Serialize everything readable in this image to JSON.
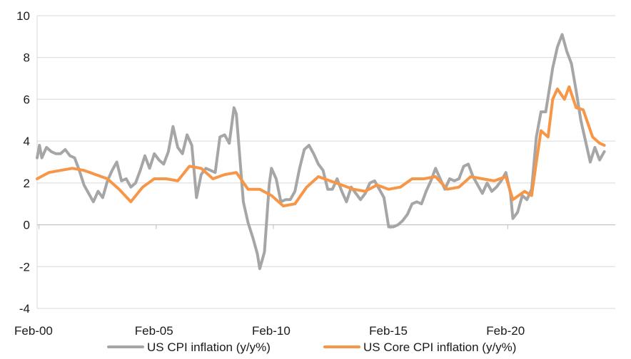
{
  "chart_data": {
    "type": "line",
    "title": "",
    "xlabel": "",
    "ylabel": "",
    "ylim": [
      -4,
      10
    ],
    "yticks": [
      -4,
      -2,
      0,
      2,
      4,
      6,
      8,
      10
    ],
    "xlim": [
      2000.0,
      2024.67
    ],
    "xticks": [
      {
        "label": "Feb-00",
        "x": 2000.08
      },
      {
        "label": "Feb-05",
        "x": 2005.08
      },
      {
        "label": "Feb-10",
        "x": 2010.08
      },
      {
        "label": "Feb-15",
        "x": 2015.08
      },
      {
        "label": "Feb-20",
        "x": 2020.08
      }
    ],
    "grid": {
      "horizontal": true,
      "vertical": false
    },
    "legend": "bottom",
    "series": [
      {
        "name": "US CPI inflation (y/y%)",
        "color": "#a6a6a6",
        "points": [
          [
            2000.0,
            3.2
          ],
          [
            2000.1,
            3.8
          ],
          [
            2000.2,
            3.2
          ],
          [
            2000.4,
            3.7
          ],
          [
            2000.6,
            3.5
          ],
          [
            2000.8,
            3.4
          ],
          [
            2001.0,
            3.4
          ],
          [
            2001.2,
            3.6
          ],
          [
            2001.4,
            3.3
          ],
          [
            2001.6,
            3.2
          ],
          [
            2001.8,
            2.6
          ],
          [
            2002.0,
            1.9
          ],
          [
            2002.2,
            1.5
          ],
          [
            2002.4,
            1.1
          ],
          [
            2002.6,
            1.6
          ],
          [
            2002.8,
            1.3
          ],
          [
            2003.0,
            2.1
          ],
          [
            2003.2,
            2.6
          ],
          [
            2003.4,
            3.0
          ],
          [
            2003.6,
            2.1
          ],
          [
            2003.8,
            2.2
          ],
          [
            2004.0,
            1.8
          ],
          [
            2004.2,
            2.0
          ],
          [
            2004.4,
            2.6
          ],
          [
            2004.6,
            3.3
          ],
          [
            2004.8,
            2.7
          ],
          [
            2005.0,
            3.4
          ],
          [
            2005.2,
            3.1
          ],
          [
            2005.4,
            2.9
          ],
          [
            2005.6,
            3.5
          ],
          [
            2005.8,
            4.7
          ],
          [
            2006.0,
            3.7
          ],
          [
            2006.2,
            3.4
          ],
          [
            2006.4,
            4.3
          ],
          [
            2006.6,
            3.8
          ],
          [
            2006.8,
            1.3
          ],
          [
            2007.0,
            2.4
          ],
          [
            2007.2,
            2.7
          ],
          [
            2007.4,
            2.6
          ],
          [
            2007.6,
            2.5
          ],
          [
            2007.8,
            4.2
          ],
          [
            2008.0,
            4.3
          ],
          [
            2008.2,
            3.9
          ],
          [
            2008.4,
            5.6
          ],
          [
            2008.5,
            5.3
          ],
          [
            2008.6,
            3.9
          ],
          [
            2008.8,
            1.1
          ],
          [
            2009.0,
            0.1
          ],
          [
            2009.2,
            -0.6
          ],
          [
            2009.4,
            -1.4
          ],
          [
            2009.5,
            -2.1
          ],
          [
            2009.7,
            -1.3
          ],
          [
            2009.9,
            1.9
          ],
          [
            2010.0,
            2.7
          ],
          [
            2010.2,
            2.2
          ],
          [
            2010.4,
            1.1
          ],
          [
            2010.6,
            1.2
          ],
          [
            2010.8,
            1.2
          ],
          [
            2011.0,
            1.6
          ],
          [
            2011.2,
            2.7
          ],
          [
            2011.4,
            3.6
          ],
          [
            2011.6,
            3.8
          ],
          [
            2011.8,
            3.4
          ],
          [
            2012.0,
            2.9
          ],
          [
            2012.2,
            2.6
          ],
          [
            2012.4,
            1.7
          ],
          [
            2012.6,
            1.7
          ],
          [
            2012.8,
            2.2
          ],
          [
            2013.0,
            1.6
          ],
          [
            2013.2,
            1.1
          ],
          [
            2013.4,
            1.8
          ],
          [
            2013.6,
            1.5
          ],
          [
            2013.8,
            1.2
          ],
          [
            2014.0,
            1.5
          ],
          [
            2014.2,
            2.0
          ],
          [
            2014.4,
            2.1
          ],
          [
            2014.6,
            1.7
          ],
          [
            2014.8,
            1.3
          ],
          [
            2015.0,
            -0.1
          ],
          [
            2015.2,
            -0.1
          ],
          [
            2015.4,
            0.0
          ],
          [
            2015.6,
            0.2
          ],
          [
            2015.8,
            0.5
          ],
          [
            2016.0,
            1.0
          ],
          [
            2016.2,
            1.1
          ],
          [
            2016.4,
            1.0
          ],
          [
            2016.6,
            1.6
          ],
          [
            2016.8,
            2.1
          ],
          [
            2017.0,
            2.7
          ],
          [
            2017.2,
            2.2
          ],
          [
            2017.4,
            1.7
          ],
          [
            2017.6,
            2.2
          ],
          [
            2017.8,
            2.1
          ],
          [
            2018.0,
            2.2
          ],
          [
            2018.2,
            2.8
          ],
          [
            2018.4,
            2.9
          ],
          [
            2018.6,
            2.3
          ],
          [
            2018.8,
            1.9
          ],
          [
            2019.0,
            1.5
          ],
          [
            2019.2,
            2.0
          ],
          [
            2019.4,
            1.6
          ],
          [
            2019.6,
            1.8
          ],
          [
            2019.8,
            2.1
          ],
          [
            2020.0,
            2.5
          ],
          [
            2020.2,
            1.5
          ],
          [
            2020.3,
            0.3
          ],
          [
            2020.5,
            0.6
          ],
          [
            2020.7,
            1.4
          ],
          [
            2020.9,
            1.2
          ],
          [
            2021.1,
            1.7
          ],
          [
            2021.3,
            4.2
          ],
          [
            2021.5,
            5.4
          ],
          [
            2021.7,
            5.4
          ],
          [
            2021.9,
            6.8
          ],
          [
            2022.0,
            7.5
          ],
          [
            2022.2,
            8.5
          ],
          [
            2022.4,
            9.1
          ],
          [
            2022.6,
            8.3
          ],
          [
            2022.8,
            7.7
          ],
          [
            2023.0,
            6.4
          ],
          [
            2023.2,
            5.0
          ],
          [
            2023.4,
            4.0
          ],
          [
            2023.6,
            3.0
          ],
          [
            2023.8,
            3.7
          ],
          [
            2024.0,
            3.1
          ],
          [
            2024.2,
            3.5
          ]
        ]
      },
      {
        "name": "US Core CPI inflation (y/y%)",
        "color": "#f79646",
        "points": [
          [
            2000.0,
            2.2
          ],
          [
            2000.5,
            2.5
          ],
          [
            2001.0,
            2.6
          ],
          [
            2001.5,
            2.7
          ],
          [
            2002.0,
            2.6
          ],
          [
            2002.5,
            2.4
          ],
          [
            2003.0,
            2.2
          ],
          [
            2003.5,
            1.7
          ],
          [
            2004.0,
            1.1
          ],
          [
            2004.5,
            1.8
          ],
          [
            2005.0,
            2.2
          ],
          [
            2005.5,
            2.2
          ],
          [
            2006.0,
            2.1
          ],
          [
            2006.5,
            2.8
          ],
          [
            2007.0,
            2.7
          ],
          [
            2007.5,
            2.2
          ],
          [
            2008.0,
            2.4
          ],
          [
            2008.5,
            2.5
          ],
          [
            2009.0,
            1.7
          ],
          [
            2009.5,
            1.7
          ],
          [
            2010.0,
            1.4
          ],
          [
            2010.5,
            0.9
          ],
          [
            2011.0,
            1.0
          ],
          [
            2011.5,
            1.8
          ],
          [
            2012.0,
            2.3
          ],
          [
            2012.5,
            2.1
          ],
          [
            2013.0,
            1.9
          ],
          [
            2013.5,
            1.7
          ],
          [
            2014.0,
            1.6
          ],
          [
            2014.5,
            1.9
          ],
          [
            2015.0,
            1.7
          ],
          [
            2015.5,
            1.8
          ],
          [
            2016.0,
            2.2
          ],
          [
            2016.5,
            2.2
          ],
          [
            2017.0,
            2.3
          ],
          [
            2017.5,
            1.7
          ],
          [
            2018.0,
            1.8
          ],
          [
            2018.5,
            2.3
          ],
          [
            2019.0,
            2.2
          ],
          [
            2019.5,
            2.1
          ],
          [
            2020.0,
            2.3
          ],
          [
            2020.3,
            1.2
          ],
          [
            2020.8,
            1.6
          ],
          [
            2021.1,
            1.4
          ],
          [
            2021.3,
            3.0
          ],
          [
            2021.5,
            4.5
          ],
          [
            2021.8,
            4.2
          ],
          [
            2022.0,
            6.0
          ],
          [
            2022.2,
            6.5
          ],
          [
            2022.5,
            6.0
          ],
          [
            2022.7,
            6.6
          ],
          [
            2023.0,
            5.6
          ],
          [
            2023.3,
            5.5
          ],
          [
            2023.7,
            4.2
          ],
          [
            2024.0,
            3.9
          ],
          [
            2024.2,
            3.8
          ]
        ]
      }
    ]
  }
}
